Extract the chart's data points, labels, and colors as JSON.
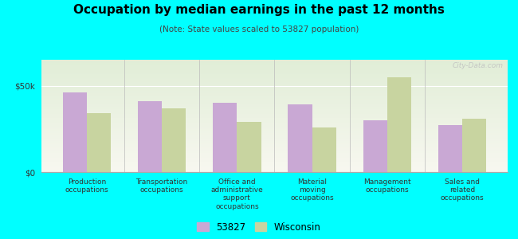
{
  "title": "Occupation by median earnings in the past 12 months",
  "subtitle": "(Note: State values scaled to 53827 population)",
  "categories": [
    "Production\noccupations",
    "Transportation\noccupations",
    "Office and\nadministrative\nsupport\noccupations",
    "Material\nmoving\noccupations",
    "Management\noccupations",
    "Sales and\nrelated\noccupations"
  ],
  "values_53827": [
    46000,
    41000,
    40000,
    39000,
    30000,
    27000
  ],
  "values_wisconsin": [
    34000,
    37000,
    29000,
    26000,
    55000,
    31000
  ],
  "color_53827": "#c9a8d4",
  "color_wisconsin": "#c8d4a0",
  "ylim": [
    0,
    65000
  ],
  "ytick_labels": [
    "$0",
    "$50k"
  ],
  "background_color": "#00ffff",
  "watermark": "City-Data.com",
  "legend_label_1": "53827",
  "legend_label_2": "Wisconsin"
}
